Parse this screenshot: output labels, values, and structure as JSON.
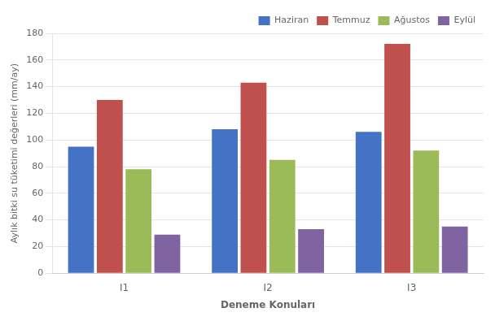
{
  "chart_data": {
    "type": "bar",
    "categories": [
      "I1",
      "I2",
      "I3"
    ],
    "series": [
      {
        "name": "Haziran",
        "values": [
          95,
          108,
          106
        ],
        "color": "#4472C4"
      },
      {
        "name": "Temmuz",
        "values": [
          130,
          143,
          172
        ],
        "color": "#C0504D"
      },
      {
        "name": "Ağustos",
        "values": [
          78,
          85,
          92
        ],
        "color": "#9BBB59"
      },
      {
        "name": "Eylül",
        "values": [
          29,
          33,
          35
        ],
        "color": "#8064A2"
      }
    ],
    "xlabel": "Deneme Konuları",
    "ylabel": "Aylık bitki su tüketimi değerleri (mm/ay)",
    "ylim": [
      0,
      180
    ],
    "yticks": [
      0,
      20,
      40,
      60,
      80,
      100,
      120,
      140,
      160,
      180
    ],
    "grid": true,
    "legend": "upper right"
  }
}
